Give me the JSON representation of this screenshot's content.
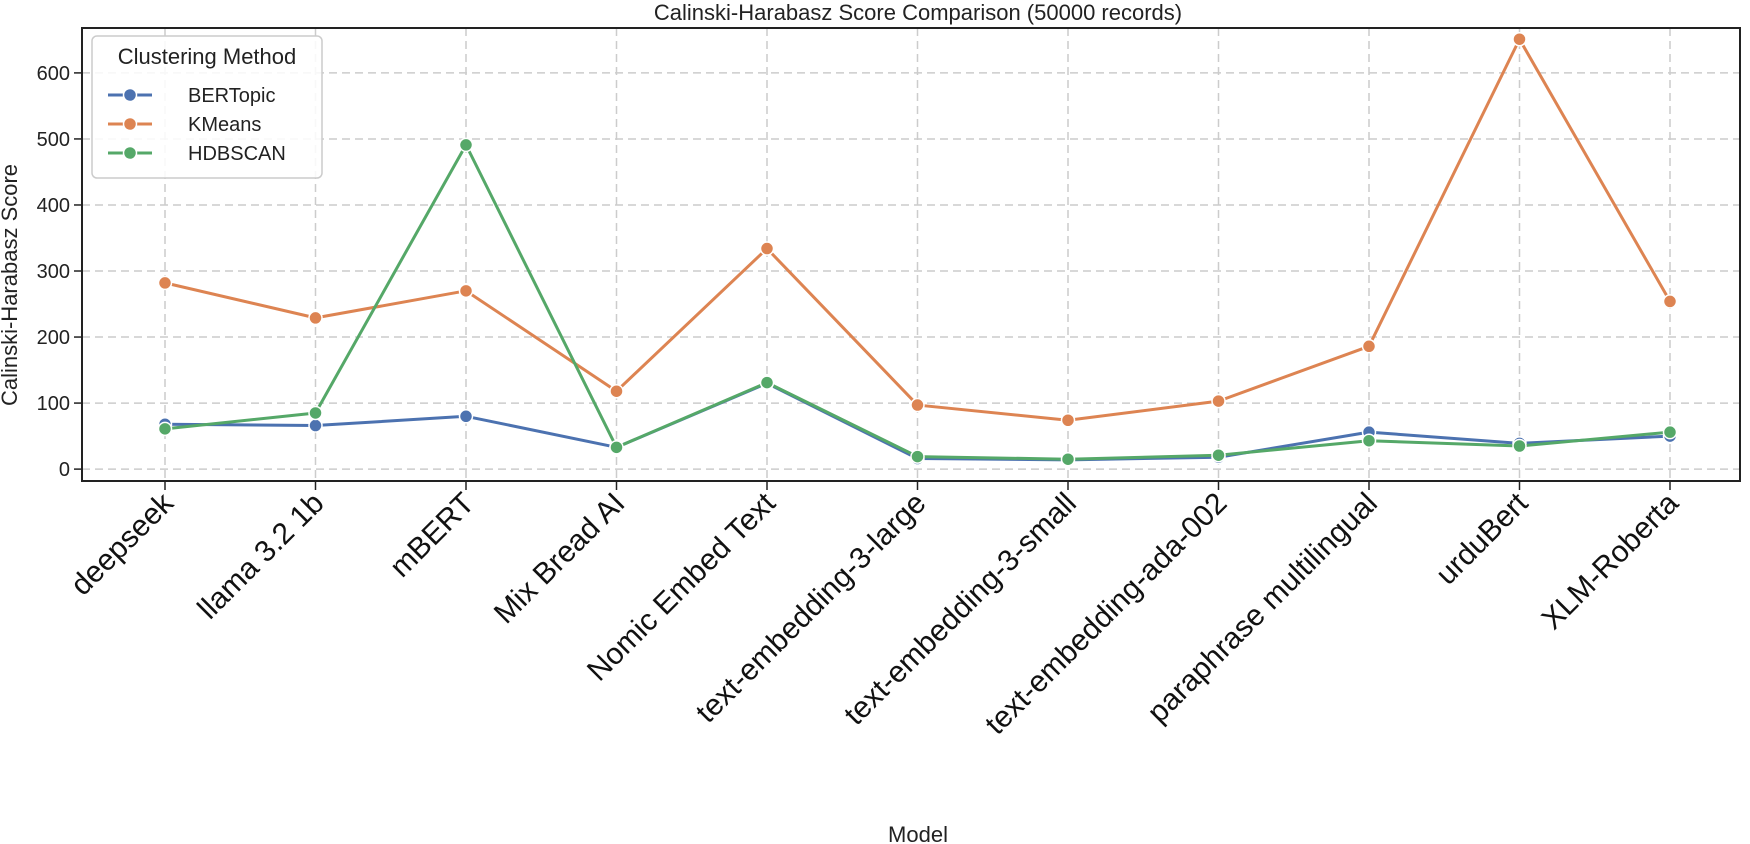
{
  "chart_data": {
    "type": "line",
    "title": "Calinski-Harabasz Score Comparison (50000 records)",
    "xlabel": "Model",
    "ylabel": "Calinski-Harabasz Score",
    "categories": [
      "deepseek",
      "llama 3.2 1b",
      "mBERT",
      "Mix Bread AI",
      "Nomic Embed Text",
      "text-embedding-3-large",
      "text-embedding-3-small",
      "text-embedding-ada-002",
      "paraphrase multilingual",
      "urduBert",
      "XLM-Roberta"
    ],
    "yticks": [
      0,
      100,
      200,
      300,
      400,
      500,
      600
    ],
    "ylim": [
      -18,
      668
    ],
    "grid": true,
    "legend": {
      "title": "Clustering Method",
      "position": "top-left"
    },
    "series": [
      {
        "name": "BERTopic",
        "color": "#4c72b0",
        "values": [
          68,
          66,
          80,
          33,
          130,
          16,
          14,
          18,
          56,
          39,
          50
        ]
      },
      {
        "name": "KMeans",
        "color": "#dd8452",
        "values": [
          282,
          229,
          270,
          118,
          334,
          97,
          74,
          103,
          186,
          651,
          254
        ]
      },
      {
        "name": "HDBSCAN",
        "color": "#55a868",
        "values": [
          61,
          85,
          491,
          33,
          131,
          19,
          15,
          21,
          43,
          35,
          56
        ]
      }
    ]
  }
}
